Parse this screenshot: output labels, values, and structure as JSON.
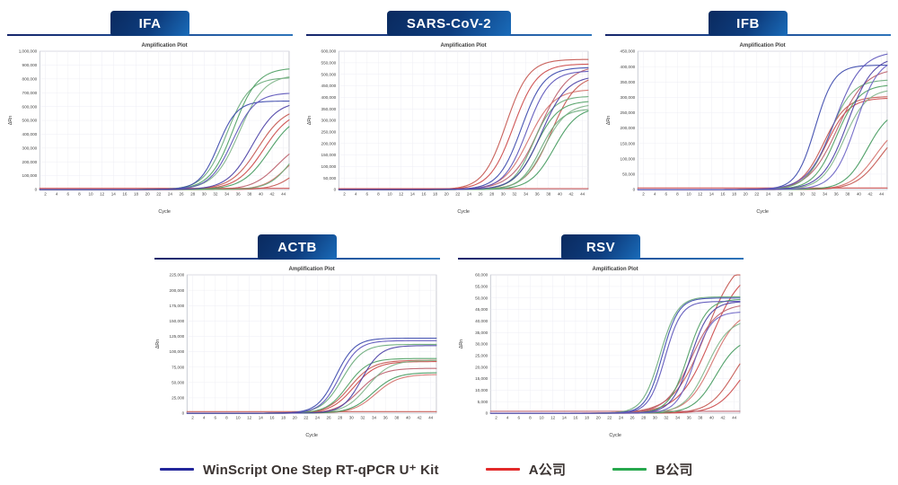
{
  "legend": {
    "items": [
      {
        "label": "WinScript One Step RT-qPCR U⁺ Kit",
        "color": "#23269b"
      },
      {
        "label": "A公司",
        "color": "#e22a2a"
      },
      {
        "label": "B公司",
        "color": "#27a84d"
      }
    ]
  },
  "palettes": {
    "blue": [
      "#3c49ad",
      "#5b54ba",
      "#4a3fa5",
      "#6a62c4"
    ],
    "red": [
      "#c4564f",
      "#cc4a4a",
      "#bb5e6b",
      "#d4706a"
    ],
    "green": [
      "#69aa79",
      "#4f9f64",
      "#7fb489",
      "#449a5e"
    ]
  },
  "chart_data": [
    {
      "type": "line",
      "tab": "IFA",
      "title": "Amplification Plot",
      "xlabel": "Cycle",
      "ylabel": "ΔRn",
      "xlim": [
        1,
        45
      ],
      "xticks": {
        "min": 2,
        "max": 44,
        "step": 2
      },
      "ylim": [
        0,
        1000000
      ],
      "ytick_step": 100000,
      "grid": true,
      "series": [
        {
          "group": "red",
          "ct": 39.5,
          "plateau": 600000,
          "k": 0.42
        },
        {
          "group": "red",
          "ct": 40.5,
          "plateau": 580000,
          "k": 0.42
        },
        {
          "group": "red",
          "ct": 43.0,
          "plateau": 360000,
          "k": 0.45
        },
        {
          "group": "red",
          "ct": 44.5,
          "plateau": 310000,
          "k": 0.5
        },
        {
          "group": "red",
          "ct": 46.5,
          "plateau": 260000,
          "k": 0.5
        },
        {
          "group": "red",
          "flat": 9000
        },
        {
          "group": "green",
          "ct": 34.0,
          "plateau": 810000,
          "k": 0.5
        },
        {
          "group": "green",
          "ct": 35.2,
          "plateau": 880000,
          "k": 0.48
        },
        {
          "group": "green",
          "ct": 36.2,
          "plateau": 830000,
          "k": 0.45
        },
        {
          "group": "green",
          "ct": 41.5,
          "plateau": 560000,
          "k": 0.42
        },
        {
          "group": "green",
          "ct": 45.5,
          "plateau": 420000,
          "k": 0.5
        },
        {
          "group": "blue",
          "ct": 32.5,
          "plateau": 640000,
          "k": 0.6
        },
        {
          "group": "blue",
          "ct": 35.0,
          "plateau": 700000,
          "k": 0.5
        },
        {
          "group": "blue",
          "ct": 38.5,
          "plateau": 640000,
          "k": 0.45
        }
      ]
    },
    {
      "type": "line",
      "tab": "SARS-CoV-2",
      "title": "Amplification Plot",
      "xlabel": "Cycle",
      "ylabel": "ΔRn",
      "xlim": [
        1,
        45
      ],
      "xticks": {
        "min": 2,
        "max": 44,
        "step": 2
      },
      "ylim": [
        0,
        600000
      ],
      "ytick_step": 50000,
      "grid": true,
      "series": [
        {
          "group": "red",
          "ct": 30.5,
          "plateau": 565000,
          "k": 0.5
        },
        {
          "group": "red",
          "ct": 31.8,
          "plateau": 545000,
          "k": 0.48
        },
        {
          "group": "red",
          "ct": 36.5,
          "plateau": 540000,
          "k": 0.4
        },
        {
          "group": "red",
          "ct": 34.5,
          "plateau": 435000,
          "k": 0.45
        },
        {
          "group": "red",
          "ct": 38.5,
          "plateau": 500000,
          "k": 0.45
        },
        {
          "group": "red",
          "flat": 4000
        },
        {
          "group": "green",
          "ct": 35.3,
          "plateau": 405000,
          "k": 0.55
        },
        {
          "group": "green",
          "ct": 35.8,
          "plateau": 385000,
          "k": 0.5
        },
        {
          "group": "green",
          "ct": 37.3,
          "plateau": 372000,
          "k": 0.5
        },
        {
          "group": "green",
          "ct": 39.0,
          "plateau": 360000,
          "k": 0.48
        },
        {
          "group": "green",
          "ct": 36.6,
          "plateau": 350000,
          "k": 0.55
        },
        {
          "group": "blue",
          "ct": 33.2,
          "plateau": 530000,
          "k": 0.5
        },
        {
          "group": "blue",
          "ct": 34.2,
          "plateau": 515000,
          "k": 0.5
        },
        {
          "group": "blue",
          "ct": 36.8,
          "plateau": 495000,
          "k": 0.45
        }
      ]
    },
    {
      "type": "line",
      "tab": "IFB",
      "title": "Amplification Plot",
      "xlabel": "Cycle",
      "ylabel": "ΔRn",
      "xlim": [
        1,
        45
      ],
      "xticks": {
        "min": 2,
        "max": 44,
        "step": 2
      },
      "ylim": [
        0,
        450000
      ],
      "ytick_step": 50000,
      "grid": true,
      "series": [
        {
          "group": "red",
          "ct": 33.8,
          "plateau": 303000,
          "k": 0.5
        },
        {
          "group": "red",
          "ct": 34.3,
          "plateau": 298000,
          "k": 0.5
        },
        {
          "group": "red",
          "ct": 36.2,
          "plateau": 395000,
          "k": 0.4
        },
        {
          "group": "red",
          "ct": 43.0,
          "plateau": 225000,
          "k": 0.45
        },
        {
          "group": "red",
          "ct": 43.8,
          "plateau": 215000,
          "k": 0.45
        },
        {
          "group": "red",
          "flat": 5000
        },
        {
          "group": "green",
          "ct": 34.8,
          "plateau": 358000,
          "k": 0.5
        },
        {
          "group": "green",
          "ct": 36.0,
          "plateau": 342000,
          "k": 0.5
        },
        {
          "group": "green",
          "ct": 37.4,
          "plateau": 328000,
          "k": 0.5
        },
        {
          "group": "green",
          "ct": 41.5,
          "plateau": 265000,
          "k": 0.5
        },
        {
          "group": "blue",
          "ct": 32.3,
          "plateau": 405000,
          "k": 0.6
        },
        {
          "group": "blue",
          "ct": 35.8,
          "plateau": 450000,
          "k": 0.42
        },
        {
          "group": "blue",
          "ct": 38.0,
          "plateau": 435000,
          "k": 0.45
        },
        {
          "group": "blue",
          "ct": 39.5,
          "plateau": 430000,
          "k": 0.5
        }
      ]
    },
    {
      "type": "line",
      "tab": "ACTB",
      "title": "Amplification Plot",
      "xlabel": "Cycle",
      "ylabel": "ΔRn",
      "xlim": [
        1,
        45
      ],
      "xticks": {
        "min": 2,
        "max": 44,
        "step": 2
      },
      "ylim": [
        0,
        225000
      ],
      "ytick_step": 25000,
      "grid": true,
      "series": [
        {
          "group": "red",
          "ct": 29.8,
          "plateau": 86000,
          "k": 0.5
        },
        {
          "group": "red",
          "ct": 30.4,
          "plateau": 84000,
          "k": 0.5
        },
        {
          "group": "red",
          "ct": 31.4,
          "plateau": 73000,
          "k": 0.5
        },
        {
          "group": "red",
          "ct": 34.3,
          "plateau": 63000,
          "k": 0.5
        },
        {
          "group": "red",
          "flat": 2500
        },
        {
          "group": "green",
          "ct": 28.4,
          "plateau": 112000,
          "k": 0.55
        },
        {
          "group": "green",
          "ct": 29.3,
          "plateau": 89000,
          "k": 0.55
        },
        {
          "group": "green",
          "ct": 32.8,
          "plateau": 86000,
          "k": 0.5
        },
        {
          "group": "green",
          "ct": 33.8,
          "plateau": 66000,
          "k": 0.5
        },
        {
          "group": "blue",
          "ct": 27.3,
          "plateau": 122000,
          "k": 0.6
        },
        {
          "group": "blue",
          "ct": 27.9,
          "plateau": 118000,
          "k": 0.6
        },
        {
          "group": "blue",
          "ct": 31.8,
          "plateau": 110000,
          "k": 0.6
        }
      ]
    },
    {
      "type": "line",
      "tab": "RSV",
      "title": "Amplification Plot",
      "xlabel": "Cycle",
      "ylabel": "ΔRn",
      "xlim": [
        1,
        45
      ],
      "xticks": {
        "min": 2,
        "max": 44,
        "step": 2
      },
      "ylim": [
        0,
        60000
      ],
      "ytick_step": 5000,
      "grid": true,
      "series": [
        {
          "group": "red",
          "ct": 39.0,
          "plateau": 70000,
          "k": 0.35
        },
        {
          "group": "red",
          "ct": 39.8,
          "plateau": 64000,
          "k": 0.36
        },
        {
          "group": "red",
          "ct": 36.4,
          "plateau": 47500,
          "k": 0.45
        },
        {
          "group": "red",
          "ct": 40.2,
          "plateau": 45000,
          "k": 0.45
        },
        {
          "group": "red",
          "ct": 44.0,
          "plateau": 35000,
          "k": 0.45
        },
        {
          "group": "red",
          "ct": 45.2,
          "plateau": 30000,
          "k": 0.45
        },
        {
          "group": "red",
          "flat": 800
        },
        {
          "group": "green",
          "ct": 30.9,
          "plateau": 50500,
          "k": 0.65
        },
        {
          "group": "green",
          "ct": 35.8,
          "plateau": 49500,
          "k": 0.6
        },
        {
          "group": "green",
          "ct": 39.2,
          "plateau": 41000,
          "k": 0.5
        },
        {
          "group": "green",
          "ct": 40.8,
          "plateau": 33000,
          "k": 0.5
        },
        {
          "group": "blue",
          "ct": 31.3,
          "plateau": 50000,
          "k": 0.7
        },
        {
          "group": "blue",
          "ct": 31.8,
          "plateau": 48500,
          "k": 0.7
        },
        {
          "group": "blue",
          "ct": 36.3,
          "plateau": 48500,
          "k": 0.6
        },
        {
          "group": "blue",
          "ct": 36.9,
          "plateau": 44000,
          "k": 0.65
        }
      ]
    }
  ]
}
